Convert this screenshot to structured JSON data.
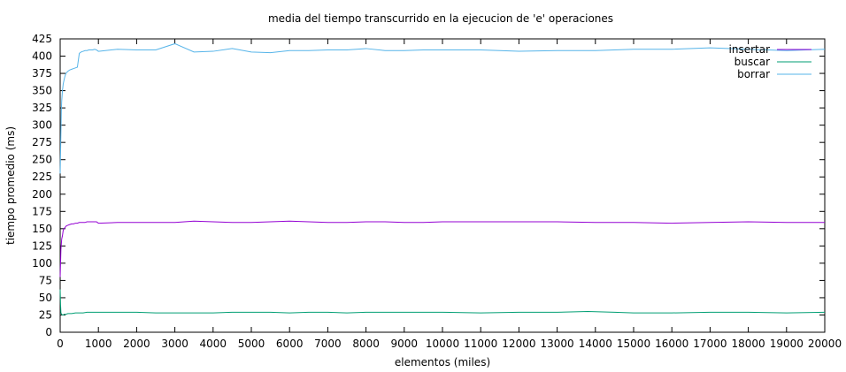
{
  "chart_data": {
    "type": "line",
    "title": "media del tiempo transcurrido en la ejecucion de 'e' operaciones",
    "xlabel": "elementos (miles)",
    "ylabel": "tiempo promedio (ms)",
    "xlim": [
      0,
      20000
    ],
    "ylim": [
      0,
      425
    ],
    "x_ticks": [
      0,
      1000,
      2000,
      3000,
      4000,
      5000,
      6000,
      7000,
      8000,
      9000,
      10000,
      11000,
      12000,
      13000,
      14000,
      15000,
      16000,
      17000,
      18000,
      19000,
      20000
    ],
    "y_ticks": [
      0,
      25,
      50,
      75,
      100,
      125,
      150,
      175,
      200,
      225,
      250,
      275,
      300,
      325,
      350,
      375,
      400,
      425
    ],
    "grid": false,
    "legend_position": "top-right",
    "series": [
      {
        "name": "insertar",
        "color": "#9400d3",
        "points": [
          [
            0,
            80
          ],
          [
            10,
            100
          ],
          [
            20,
            120
          ],
          [
            40,
            135
          ],
          [
            60,
            140
          ],
          [
            80,
            148
          ],
          [
            100,
            150
          ],
          [
            130,
            152
          ],
          [
            160,
            154
          ],
          [
            200,
            155
          ],
          [
            250,
            156
          ],
          [
            300,
            157
          ],
          [
            350,
            157
          ],
          [
            400,
            158
          ],
          [
            450,
            158
          ],
          [
            500,
            159
          ],
          [
            550,
            159
          ],
          [
            600,
            159
          ],
          [
            650,
            159
          ],
          [
            700,
            160
          ],
          [
            750,
            160
          ],
          [
            800,
            160
          ],
          [
            850,
            160
          ],
          [
            900,
            160
          ],
          [
            950,
            160
          ],
          [
            1000,
            158
          ],
          [
            1500,
            159
          ],
          [
            2000,
            159
          ],
          [
            2500,
            159
          ],
          [
            3000,
            159
          ],
          [
            3500,
            161
          ],
          [
            4000,
            160
          ],
          [
            4500,
            159
          ],
          [
            5000,
            159
          ],
          [
            5500,
            160
          ],
          [
            6000,
            161
          ],
          [
            6500,
            160
          ],
          [
            7000,
            159
          ],
          [
            7500,
            159
          ],
          [
            8000,
            160
          ],
          [
            8500,
            160
          ],
          [
            9000,
            159
          ],
          [
            9500,
            159
          ],
          [
            10000,
            160
          ],
          [
            11000,
            160
          ],
          [
            12000,
            160
          ],
          [
            13000,
            160
          ],
          [
            14000,
            159
          ],
          [
            15000,
            159
          ],
          [
            16000,
            158
          ],
          [
            17000,
            159
          ],
          [
            18000,
            160
          ],
          [
            19000,
            159
          ],
          [
            20000,
            159
          ]
        ]
      },
      {
        "name": "buscar",
        "color": "#009e73",
        "points": [
          [
            0,
            62
          ],
          [
            10,
            40
          ],
          [
            20,
            28
          ],
          [
            40,
            26
          ],
          [
            60,
            25
          ],
          [
            80,
            25
          ],
          [
            100,
            26
          ],
          [
            150,
            26
          ],
          [
            200,
            27
          ],
          [
            300,
            27
          ],
          [
            400,
            28
          ],
          [
            500,
            28
          ],
          [
            600,
            28
          ],
          [
            700,
            29
          ],
          [
            800,
            29
          ],
          [
            900,
            29
          ],
          [
            1000,
            29
          ],
          [
            1500,
            29
          ],
          [
            2000,
            29
          ],
          [
            2500,
            28
          ],
          [
            3000,
            28
          ],
          [
            3500,
            28
          ],
          [
            4000,
            28
          ],
          [
            4500,
            29
          ],
          [
            5000,
            29
          ],
          [
            5500,
            29
          ],
          [
            6000,
            28
          ],
          [
            6500,
            29
          ],
          [
            7000,
            29
          ],
          [
            7500,
            28
          ],
          [
            8000,
            29
          ],
          [
            8500,
            29
          ],
          [
            9000,
            29
          ],
          [
            9500,
            29
          ],
          [
            10000,
            29
          ],
          [
            11000,
            28
          ],
          [
            12000,
            29
          ],
          [
            13000,
            29
          ],
          [
            13800,
            30
          ],
          [
            14500,
            29
          ],
          [
            15000,
            28
          ],
          [
            16000,
            28
          ],
          [
            17000,
            29
          ],
          [
            18000,
            29
          ],
          [
            19000,
            28
          ],
          [
            20000,
            29
          ]
        ]
      },
      {
        "name": "borrar",
        "color": "#56b4e9",
        "points": [
          [
            0,
            230
          ],
          [
            10,
            260
          ],
          [
            20,
            290
          ],
          [
            30,
            320
          ],
          [
            40,
            335
          ],
          [
            60,
            350
          ],
          [
            80,
            360
          ],
          [
            100,
            365
          ],
          [
            120,
            370
          ],
          [
            150,
            375
          ],
          [
            200,
            378
          ],
          [
            250,
            380
          ],
          [
            300,
            381
          ],
          [
            350,
            382
          ],
          [
            400,
            383
          ],
          [
            450,
            384
          ],
          [
            500,
            404
          ],
          [
            550,
            406
          ],
          [
            600,
            407
          ],
          [
            650,
            408
          ],
          [
            700,
            408
          ],
          [
            750,
            409
          ],
          [
            800,
            409
          ],
          [
            850,
            409
          ],
          [
            900,
            410
          ],
          [
            950,
            409
          ],
          [
            1000,
            407
          ],
          [
            1500,
            410
          ],
          [
            2000,
            409
          ],
          [
            2500,
            409
          ],
          [
            3000,
            418
          ],
          [
            3500,
            406
          ],
          [
            4000,
            407
          ],
          [
            4500,
            411
          ],
          [
            5000,
            406
          ],
          [
            5500,
            405
          ],
          [
            6000,
            408
          ],
          [
            6500,
            408
          ],
          [
            7000,
            409
          ],
          [
            7500,
            409
          ],
          [
            8000,
            411
          ],
          [
            8500,
            408
          ],
          [
            9000,
            408
          ],
          [
            9500,
            409
          ],
          [
            10000,
            409
          ],
          [
            11000,
            409
          ],
          [
            12000,
            407
          ],
          [
            13000,
            408
          ],
          [
            14000,
            408
          ],
          [
            15000,
            410
          ],
          [
            16000,
            410
          ],
          [
            17000,
            412
          ],
          [
            18000,
            410
          ],
          [
            19000,
            408
          ],
          [
            20000,
            410
          ]
        ]
      }
    ]
  }
}
